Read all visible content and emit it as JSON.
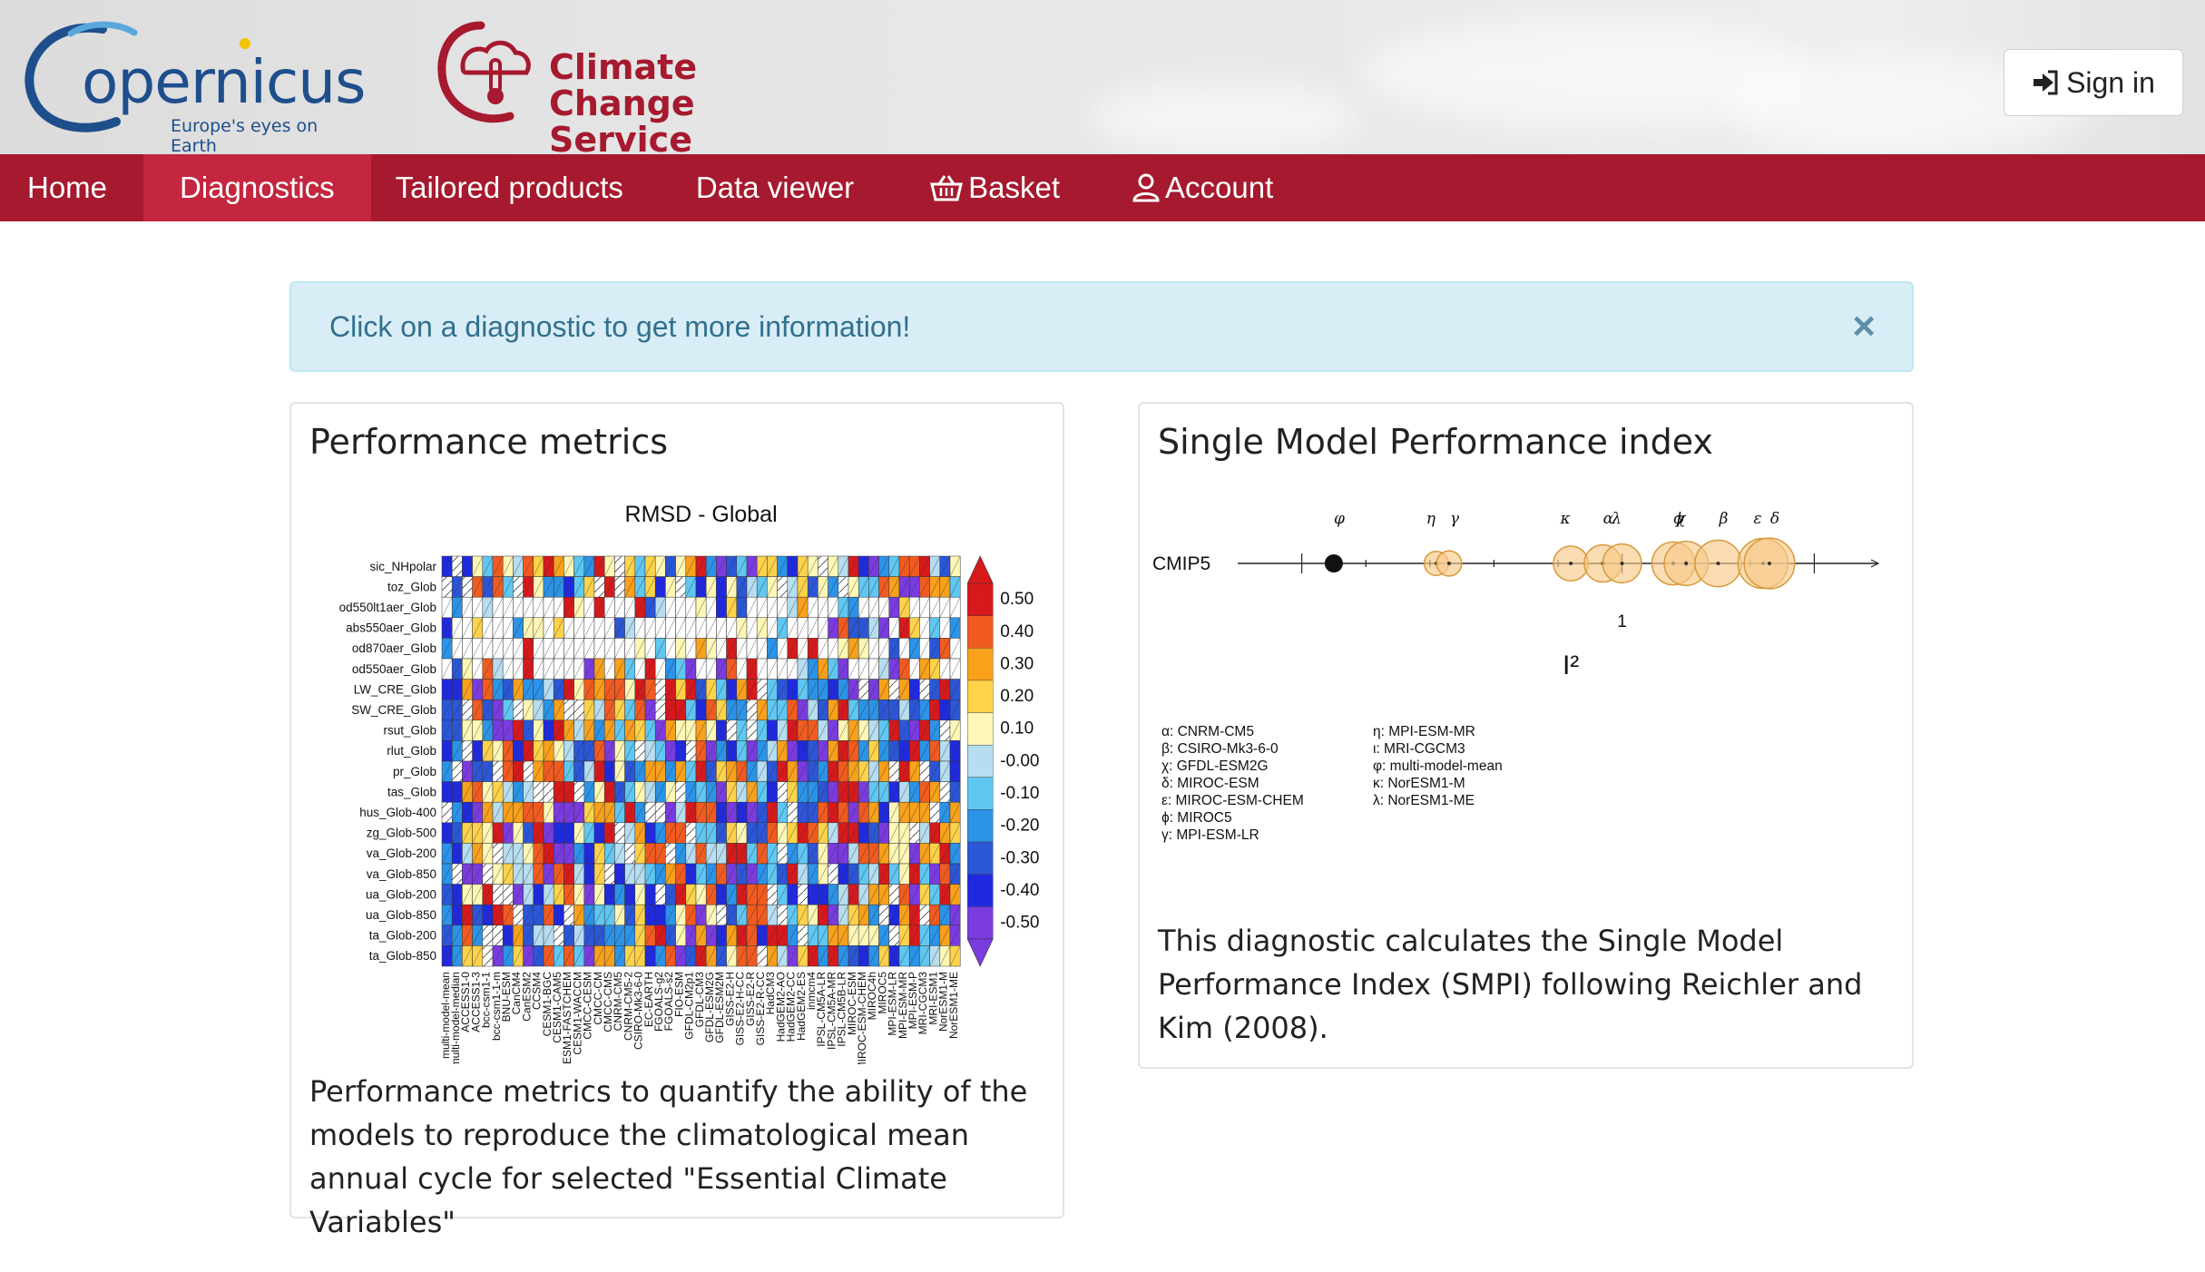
{
  "header": {
    "copernicus_logo_word": "opernicus",
    "copernicus_logo_letter": "C",
    "copernicus_tagline": "Europe's eyes on Earth",
    "service_title": "Climate Change Service",
    "signin_label": "Sign in"
  },
  "nav": {
    "items": [
      {
        "label": "Home",
        "active": false,
        "icon": ""
      },
      {
        "label": "Diagnostics",
        "active": true,
        "icon": ""
      },
      {
        "label": "Tailored products",
        "active": false,
        "icon": ""
      },
      {
        "label": "Data viewer",
        "active": false,
        "icon": ""
      },
      {
        "label": "Basket",
        "active": false,
        "icon": "basket-icon"
      },
      {
        "label": "Account",
        "active": false,
        "icon": "user-icon"
      }
    ]
  },
  "alert": {
    "text": "Click on a diagnostic to get more information!",
    "close_symbol": "×"
  },
  "colors": {
    "brand": "#a6192e",
    "brand_active": "#c3263e",
    "alert_bg": "#d9edf7",
    "alert_text": "#31708f"
  },
  "panels": {
    "performance": {
      "title": "Performance metrics",
      "description": "Performance metrics to quantify the ability of the models to reproduce the climatological mean annual cycle for selected \"Essential Climate Variables\""
    },
    "smpi": {
      "title": "Single Model Performance index",
      "description": "This diagnostic calculates the Single Model Performance Index (SMPI) following Reichler and Kim (2008)."
    }
  },
  "chart_data": [
    {
      "type": "heatmap",
      "title": "RMSD - Global",
      "rows": [
        "sic_NHpolar",
        "toz_Glob",
        "od550lt1aer_Glob",
        "abs550aer_Glob",
        "od870aer_Glob",
        "od550aer_Glob",
        "LW_CRE_Glob",
        "SW_CRE_Glob",
        "rsut_Glob",
        "rlut_Glob",
        "pr_Glob",
        "tas_Glob",
        "hus_Glob-400",
        "zg_Glob-500",
        "va_Glob-200",
        "va_Glob-850",
        "ua_Glob-200",
        "ua_Glob-850",
        "ta_Glob-200",
        "ta_Glob-850"
      ],
      "columns": [
        "multi-model-mean",
        "multi-model-median",
        "ACCESS1-0",
        "ACCESS1-3",
        "bcc-csm1-1",
        "bcc-csm1-1-m",
        "BNU-ESM",
        "CanCM4",
        "CanESM2",
        "CCSM4",
        "CESM1-BGC",
        "CESM1-CAM5",
        "CESM1-FASTCHEM",
        "CESM1-WACCM",
        "CMCC-CESM",
        "CMCC-CM",
        "CMCC-CMS",
        "CNRM-CM5",
        "CNRM-CM5-2",
        "CSIRO-Mk3-6-0",
        "EC-EARTH",
        "FGOALS-g2",
        "FGOALS-s2",
        "FIO-ESM",
        "GFDL-CM2p1",
        "GFDL-CM3",
        "GFDL-ESM2G",
        "GFDL-ESM2M",
        "GISS-E2-H",
        "GISS-E2-H-CC",
        "GISS-E2-R",
        "GISS-E2-R-CC",
        "HadCM3",
        "HadGEM2-AO",
        "HadGEM2-CC",
        "HadGEM2-ES",
        "inmcm4",
        "IPSL-CM5A-LR",
        "IPSL-CM5A-MR",
        "IPSL-CM5B-LR",
        "MIROC-ESM",
        "MIROC-ESM-CHEM",
        "MIROC4h",
        "MIROC5",
        "MPI-ESM-LR",
        "MPI-ESM-MR",
        "MPI-ESM-P",
        "MRI-CGCM3",
        "MRI-ESM1",
        "NorESM1-M",
        "NorESM1-ME"
      ],
      "colorbar": {
        "ticks": [
          "0.50",
          "0.40",
          "0.30",
          "0.20",
          "0.10",
          "-0.00",
          "-0.10",
          "-0.20",
          "-0.30",
          "-0.40",
          "-0.50"
        ],
        "colors": [
          "#d7191c",
          "#f25b1f",
          "#f9a11b",
          "#fed34a",
          "#fff7b5",
          "#b6ddf0",
          "#5fc7f2",
          "#2b93e8",
          "#2b56d8",
          "#1f2ae0",
          "#7a3be0"
        ]
      }
    },
    {
      "type": "scatter",
      "ylabel": "CMIP5",
      "xlabel": "I²",
      "x_tick_label": "1",
      "markers": [
        {
          "symbol": "φ",
          "label": "multi-model-mean",
          "x": 0.55
        },
        {
          "symbol": "η",
          "label": "MPI-ESM-MR",
          "x": 0.71
        },
        {
          "symbol": "γ",
          "label": "MPI-ESM-LR",
          "x": 0.73
        },
        {
          "symbol": "κ",
          "label": "NorESM1-M",
          "x": 0.92
        },
        {
          "symbol": "α",
          "label": "CNRM-CM5",
          "x": 0.97
        },
        {
          "symbol": "λ",
          "label": "NorESM1-ME",
          "x": 1.0
        },
        {
          "symbol": "ϕ",
          "label": "MIROC5",
          "x": 1.08
        },
        {
          "symbol": "χ",
          "label": "GFDL-ESM2G",
          "x": 1.1
        },
        {
          "symbol": "β",
          "label": "CSIRO-Mk3-6-0",
          "x": 1.15
        },
        {
          "symbol": "ε",
          "label": "MIROC-ESM-CHEM",
          "x": 1.22
        },
        {
          "symbol": "δ",
          "label": "MIROC-ESM",
          "x": 1.23
        }
      ],
      "legend_left": [
        "α: CNRM-CM5",
        "β: CSIRO-Mk3-6-0",
        "χ: GFDL-ESM2G",
        "δ: MIROC-ESM",
        "ε: MIROC-ESM-CHEM",
        "ϕ: MIROC5",
        "γ: MPI-ESM-LR"
      ],
      "legend_right": [
        "η: MPI-ESM-MR",
        "ι: MRI-CGCM3",
        "φ: multi-model-mean",
        "κ: NorESM1-M",
        "λ: NorESM1-ME"
      ]
    }
  ]
}
